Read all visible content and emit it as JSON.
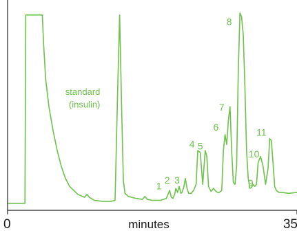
{
  "colors": {
    "trace": "#6cc24a",
    "axis": "#222222",
    "text": "#1a1a1a",
    "background": "#ffffff"
  },
  "chart_data": {
    "type": "line",
    "title": "",
    "xlabel": "minutes",
    "ylabel": "",
    "xlim": [
      0,
      35
    ],
    "ylim": [
      0,
      1
    ],
    "grid": false,
    "x_ticks": [
      {
        "value": 0,
        "label": "0"
      },
      {
        "value": 35,
        "label": "35"
      }
    ],
    "series": [
      {
        "x": [
          0,
          2.1,
          2.2,
          4.2,
          4.35,
          4.6,
          5.0,
          5.5,
          6.0,
          6.5,
          7.0,
          7.5,
          8.5,
          9.3,
          9.6,
          9.9,
          10.5,
          11.5,
          12.5,
          13.0,
          13.3,
          13.55,
          13.8,
          14.0,
          14.2,
          14.6,
          15.5,
          16.3,
          16.6,
          16.9,
          17.5,
          18.5,
          19.2,
          19.6,
          19.8,
          20.0,
          20.2,
          20.35,
          20.55,
          20.75,
          20.95,
          21.1,
          21.3,
          21.5,
          21.7,
          21.9,
          22.2,
          22.5,
          22.8,
          23.0,
          23.3,
          23.6,
          23.9,
          24.1,
          24.3,
          24.6,
          24.9,
          25.2,
          25.4,
          25.6,
          25.9,
          26.1,
          26.3,
          26.5,
          26.7,
          26.9,
          27.1,
          27.3,
          27.5,
          27.7,
          27.9,
          28.1,
          28.3,
          28.5,
          28.7,
          28.9,
          29.1,
          29.3,
          29.5,
          29.7,
          29.9,
          30.1,
          30.3,
          30.6,
          30.9,
          31.2,
          31.5,
          31.7,
          31.9,
          32.1,
          32.3,
          32.5,
          32.8,
          33.2,
          34.0,
          35.0
        ],
        "y": [
          0.035,
          0.035,
          0.98,
          0.98,
          0.84,
          0.66,
          0.52,
          0.4,
          0.3,
          0.22,
          0.16,
          0.12,
          0.08,
          0.065,
          0.08,
          0.065,
          0.05,
          0.045,
          0.045,
          0.05,
          0.58,
          0.98,
          0.5,
          0.15,
          0.085,
          0.07,
          0.06,
          0.055,
          0.07,
          0.055,
          0.05,
          0.05,
          0.06,
          0.1,
          0.065,
          0.06,
          0.08,
          0.11,
          0.09,
          0.12,
          0.085,
          0.09,
          0.115,
          0.16,
          0.11,
          0.085,
          0.085,
          0.1,
          0.13,
          0.3,
          0.29,
          0.13,
          0.3,
          0.27,
          0.12,
          0.095,
          0.11,
          0.095,
          0.09,
          0.09,
          0.1,
          0.3,
          0.38,
          0.33,
          0.45,
          0.52,
          0.3,
          0.14,
          0.13,
          0.22,
          0.7,
          0.99,
          0.97,
          0.88,
          0.62,
          0.3,
          0.16,
          0.11,
          0.115,
          0.13,
          0.12,
          0.13,
          0.24,
          0.27,
          0.22,
          0.13,
          0.21,
          0.36,
          0.35,
          0.24,
          0.12,
          0.1,
          0.09,
          0.09,
          0.085,
          0.09
        ]
      }
    ],
    "annotations": [
      {
        "text": "standard",
        "x": 11.2,
        "y": 0.58
      },
      {
        "text": "(insulin)",
        "x": 11.2,
        "y": 0.515
      },
      {
        "text": "1",
        "x": 18.3,
        "y": 0.105
      },
      {
        "text": "2",
        "x": 19.3,
        "y": 0.135
      },
      {
        "text": "3",
        "x": 20.5,
        "y": 0.135
      },
      {
        "text": "4",
        "x": 22.3,
        "y": 0.315
      },
      {
        "text": "5",
        "x": 23.3,
        "y": 0.305
      },
      {
        "text": "6",
        "x": 25.2,
        "y": 0.4
      },
      {
        "text": "7",
        "x": 25.9,
        "y": 0.5
      },
      {
        "text": "8",
        "x": 26.8,
        "y": 0.93
      },
      {
        "text": "9",
        "x": 29.4,
        "y": 0.12
      },
      {
        "text": "10",
        "x": 29.8,
        "y": 0.265
      },
      {
        "text": "11",
        "x": 30.7,
        "y": 0.375
      }
    ]
  }
}
